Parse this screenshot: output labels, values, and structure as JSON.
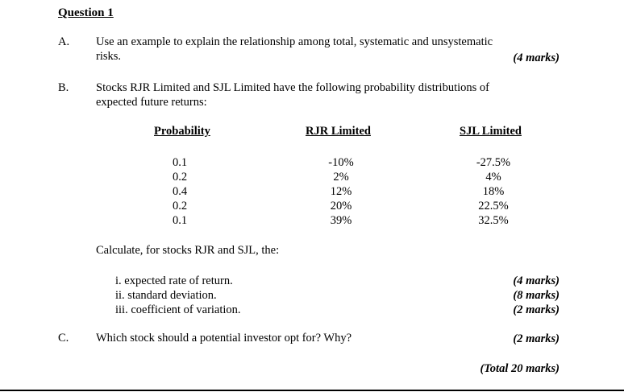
{
  "title": "Question 1",
  "part_a": {
    "letter": "A.",
    "line1": "Use an example to explain the relationship among total, systematic and unsystematic",
    "line2": "risks.",
    "marks": "(4 marks)"
  },
  "part_b": {
    "letter": "B.",
    "line1": "Stocks RJR Limited and SJL Limited have the following probability distributions of",
    "line2": "expected future returns:",
    "table": {
      "headers": [
        "Probability",
        "RJR Limited",
        "SJL Limited"
      ],
      "probability": [
        "0.1",
        "0.2",
        "0.4",
        "0.2",
        "0.1"
      ],
      "rjr": [
        "-10%",
        "2%",
        "12%",
        "20%",
        "39%"
      ],
      "sjl": [
        "-27.5%",
        "4%",
        "18%",
        "22.5%",
        "32.5%"
      ]
    },
    "calc_intro": "Calculate, for stocks RJR and SJL, the:",
    "items": [
      {
        "label": "i.  expected rate of return.",
        "marks": "(4 marks)"
      },
      {
        "label": "ii.  standard deviation.",
        "marks": "(8 marks)"
      },
      {
        "label": "iii. coefficient of variation.",
        "marks": "(2 marks)"
      }
    ]
  },
  "part_c": {
    "letter": "C.",
    "text": "Which stock should a potential investor opt for? Why?",
    "marks": "(2 marks)"
  },
  "total": "(Total 20 marks)"
}
